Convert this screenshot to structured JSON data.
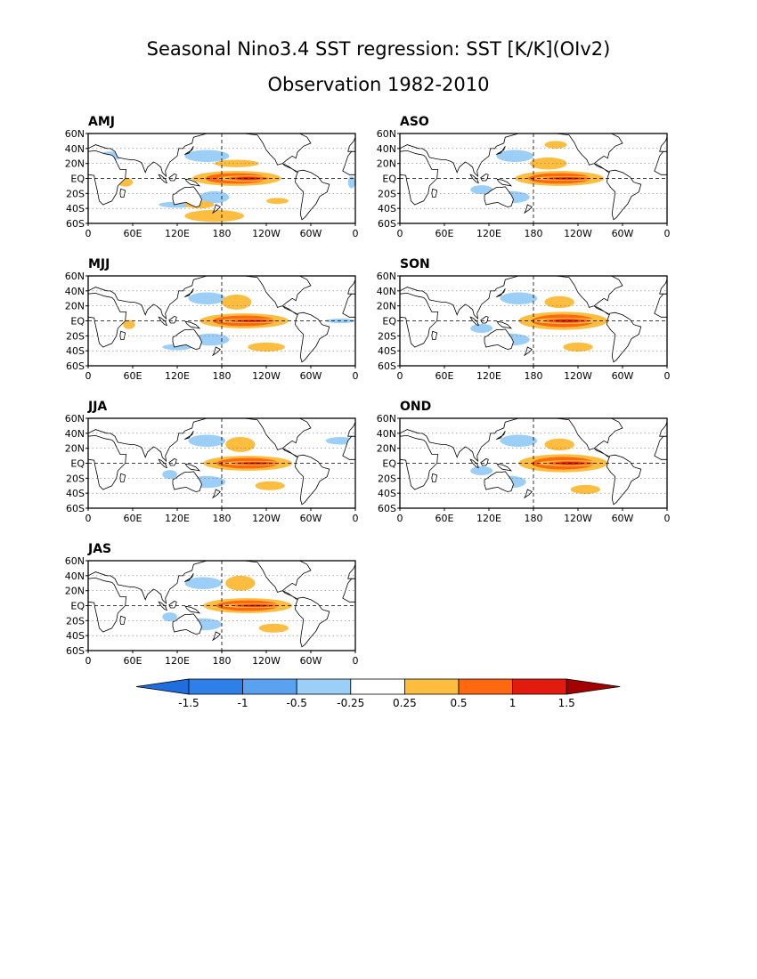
{
  "title": "Seasonal Nino3.4 SST regression: SST [K/K](OIv2)",
  "subtitle": "Observation 1982-2010",
  "colors": {
    "neg_extend": "#1e6ee0",
    "neg_1_5": "#2e7fe8",
    "neg_1": "#5aa2f0",
    "neg_0_5": "#9ccff8",
    "neutral": "#ffffff",
    "pos_0_25": "#fdbd3f",
    "pos_0_5": "#fd6810",
    "pos_1": "#e21a0f",
    "pos_1_5": "#a50000",
    "land": "#ffffff"
  },
  "chart_data": [
    {
      "type": "heatmap",
      "name": "AMJ",
      "xlim": [
        0,
        360
      ],
      "ylim": [
        -60,
        60
      ],
      "x_ticks": [
        "0",
        "60E",
        "120E",
        "180",
        "120W",
        "60W",
        "0"
      ],
      "y_ticks": [
        "60N",
        "40N",
        "20N",
        "EQ",
        "20S",
        "40S",
        "60S"
      ],
      "warm_regions": [
        [
          200,
          0,
          60,
          10,
          0.6
        ],
        [
          215,
          0,
          40,
          4,
          1.1
        ],
        [
          170,
          -50,
          40,
          8,
          0.35
        ],
        [
          150,
          -35,
          20,
          5,
          0.3
        ],
        [
          200,
          20,
          30,
          5,
          0.3
        ],
        [
          50,
          -5,
          10,
          6,
          0.3
        ],
        [
          255,
          -30,
          15,
          4,
          0.3
        ]
      ],
      "cool_regions": [
        [
          160,
          30,
          30,
          8,
          -0.35
        ],
        [
          170,
          -25,
          20,
          8,
          -0.35
        ],
        [
          120,
          -35,
          25,
          4,
          -0.3
        ],
        [
          30,
          30,
          15,
          6,
          -0.3
        ],
        [
          355,
          -5,
          5,
          8,
          -0.3
        ]
      ]
    },
    {
      "type": "heatmap",
      "name": "ASO",
      "xlim": [
        0,
        360
      ],
      "ylim": [
        -60,
        60
      ],
      "x_ticks": [
        "0",
        "60E",
        "120E",
        "180",
        "120W",
        "60W",
        "0"
      ],
      "y_ticks": [
        "60N",
        "40N",
        "20N",
        "EQ",
        "20S",
        "40S",
        "60S"
      ],
      "warm_regions": [
        [
          215,
          0,
          60,
          10,
          0.6
        ],
        [
          225,
          0,
          45,
          3,
          1.1
        ],
        [
          200,
          20,
          25,
          8,
          0.35
        ],
        [
          210,
          45,
          15,
          5,
          0.3
        ]
      ],
      "cool_regions": [
        [
          155,
          30,
          25,
          8,
          -0.35
        ],
        [
          150,
          -25,
          25,
          8,
          -0.35
        ],
        [
          110,
          -15,
          15,
          6,
          -0.3
        ]
      ]
    },
    {
      "type": "heatmap",
      "name": "MJJ",
      "xlim": [
        0,
        360
      ],
      "ylim": [
        -60,
        60
      ],
      "x_ticks": [
        "0",
        "60E",
        "120E",
        "180",
        "120W",
        "60W",
        "0"
      ],
      "y_ticks": [
        "60N",
        "40N",
        "20N",
        "EQ",
        "20S",
        "40S",
        "60S"
      ],
      "warm_regions": [
        [
          210,
          0,
          60,
          10,
          0.6
        ],
        [
          220,
          0,
          45,
          3,
          1.1
        ],
        [
          200,
          25,
          20,
          10,
          0.35
        ],
        [
          240,
          -35,
          25,
          6,
          0.3
        ],
        [
          55,
          -5,
          8,
          6,
          0.3
        ]
      ],
      "cool_regions": [
        [
          160,
          30,
          25,
          8,
          -0.35
        ],
        [
          165,
          -25,
          25,
          8,
          -0.35
        ],
        [
          120,
          -35,
          20,
          4,
          -0.3
        ],
        [
          340,
          0,
          20,
          3,
          -0.3
        ]
      ]
    },
    {
      "type": "heatmap",
      "name": "SON",
      "xlim": [
        0,
        360
      ],
      "ylim": [
        -60,
        60
      ],
      "x_ticks": [
        "0",
        "60E",
        "120E",
        "180",
        "120W",
        "60W",
        "0"
      ],
      "y_ticks": [
        "60N",
        "40N",
        "20N",
        "EQ",
        "20S",
        "40S",
        "60S"
      ],
      "warm_regions": [
        [
          220,
          0,
          60,
          12,
          0.6
        ],
        [
          225,
          0,
          45,
          4,
          1.1
        ],
        [
          215,
          25,
          20,
          8,
          0.35
        ],
        [
          240,
          -35,
          20,
          6,
          0.3
        ]
      ],
      "cool_regions": [
        [
          160,
          30,
          25,
          8,
          -0.35
        ],
        [
          150,
          -25,
          25,
          8,
          -0.35
        ],
        [
          110,
          -10,
          15,
          6,
          -0.3
        ]
      ]
    },
    {
      "type": "heatmap",
      "name": "JJA",
      "xlim": [
        0,
        360
      ],
      "ylim": [
        -60,
        60
      ],
      "x_ticks": [
        "0",
        "60E",
        "120E",
        "180",
        "120W",
        "60W",
        "0"
      ],
      "y_ticks": [
        "60N",
        "40N",
        "20N",
        "EQ",
        "20S",
        "40S",
        "60S"
      ],
      "warm_regions": [
        [
          215,
          0,
          60,
          10,
          0.6
        ],
        [
          225,
          0,
          45,
          3,
          1.1
        ],
        [
          205,
          25,
          20,
          10,
          0.35
        ],
        [
          245,
          -30,
          20,
          6,
          0.3
        ]
      ],
      "cool_regions": [
        [
          160,
          30,
          25,
          8,
          -0.35
        ],
        [
          160,
          -25,
          25,
          8,
          -0.35
        ],
        [
          110,
          -15,
          10,
          6,
          -0.3
        ],
        [
          340,
          30,
          20,
          5,
          -0.3
        ]
      ]
    },
    {
      "type": "heatmap",
      "name": "OND",
      "xlim": [
        0,
        360
      ],
      "ylim": [
        -60,
        60
      ],
      "x_ticks": [
        "0",
        "60E",
        "120E",
        "180",
        "120W",
        "60W",
        "0"
      ],
      "y_ticks": [
        "60N",
        "40N",
        "20N",
        "EQ",
        "20S",
        "40S",
        "60S"
      ],
      "warm_regions": [
        [
          220,
          0,
          60,
          12,
          0.6
        ],
        [
          230,
          0,
          45,
          4,
          1.1
        ],
        [
          215,
          25,
          20,
          8,
          0.35
        ],
        [
          250,
          -35,
          20,
          6,
          0.3
        ]
      ],
      "cool_regions": [
        [
          160,
          30,
          25,
          8,
          -0.35
        ],
        [
          150,
          -25,
          20,
          8,
          -0.35
        ],
        [
          110,
          -10,
          15,
          6,
          -0.3
        ]
      ]
    },
    {
      "type": "heatmap",
      "name": "JAS",
      "xlim": [
        0,
        360
      ],
      "ylim": [
        -60,
        60
      ],
      "x_ticks": [
        "0",
        "60E",
        "120E",
        "180",
        "120W",
        "60W",
        "0"
      ],
      "y_ticks": [
        "60N",
        "40N",
        "20N",
        "EQ",
        "20S",
        "40S",
        "60S"
      ],
      "warm_regions": [
        [
          215,
          0,
          60,
          10,
          0.6
        ],
        [
          225,
          0,
          45,
          3,
          1.1
        ],
        [
          205,
          30,
          20,
          10,
          0.35
        ],
        [
          250,
          -30,
          20,
          6,
          0.3
        ]
      ],
      "cool_regions": [
        [
          155,
          30,
          25,
          8,
          -0.35
        ],
        [
          155,
          -25,
          25,
          8,
          -0.35
        ],
        [
          110,
          -15,
          10,
          6,
          -0.3
        ]
      ]
    }
  ],
  "colorbar": {
    "labels": [
      "-1.5",
      "-1",
      "-0.5",
      "-0.25",
      "0.25",
      "0.5",
      "1",
      "1.5"
    ]
  }
}
